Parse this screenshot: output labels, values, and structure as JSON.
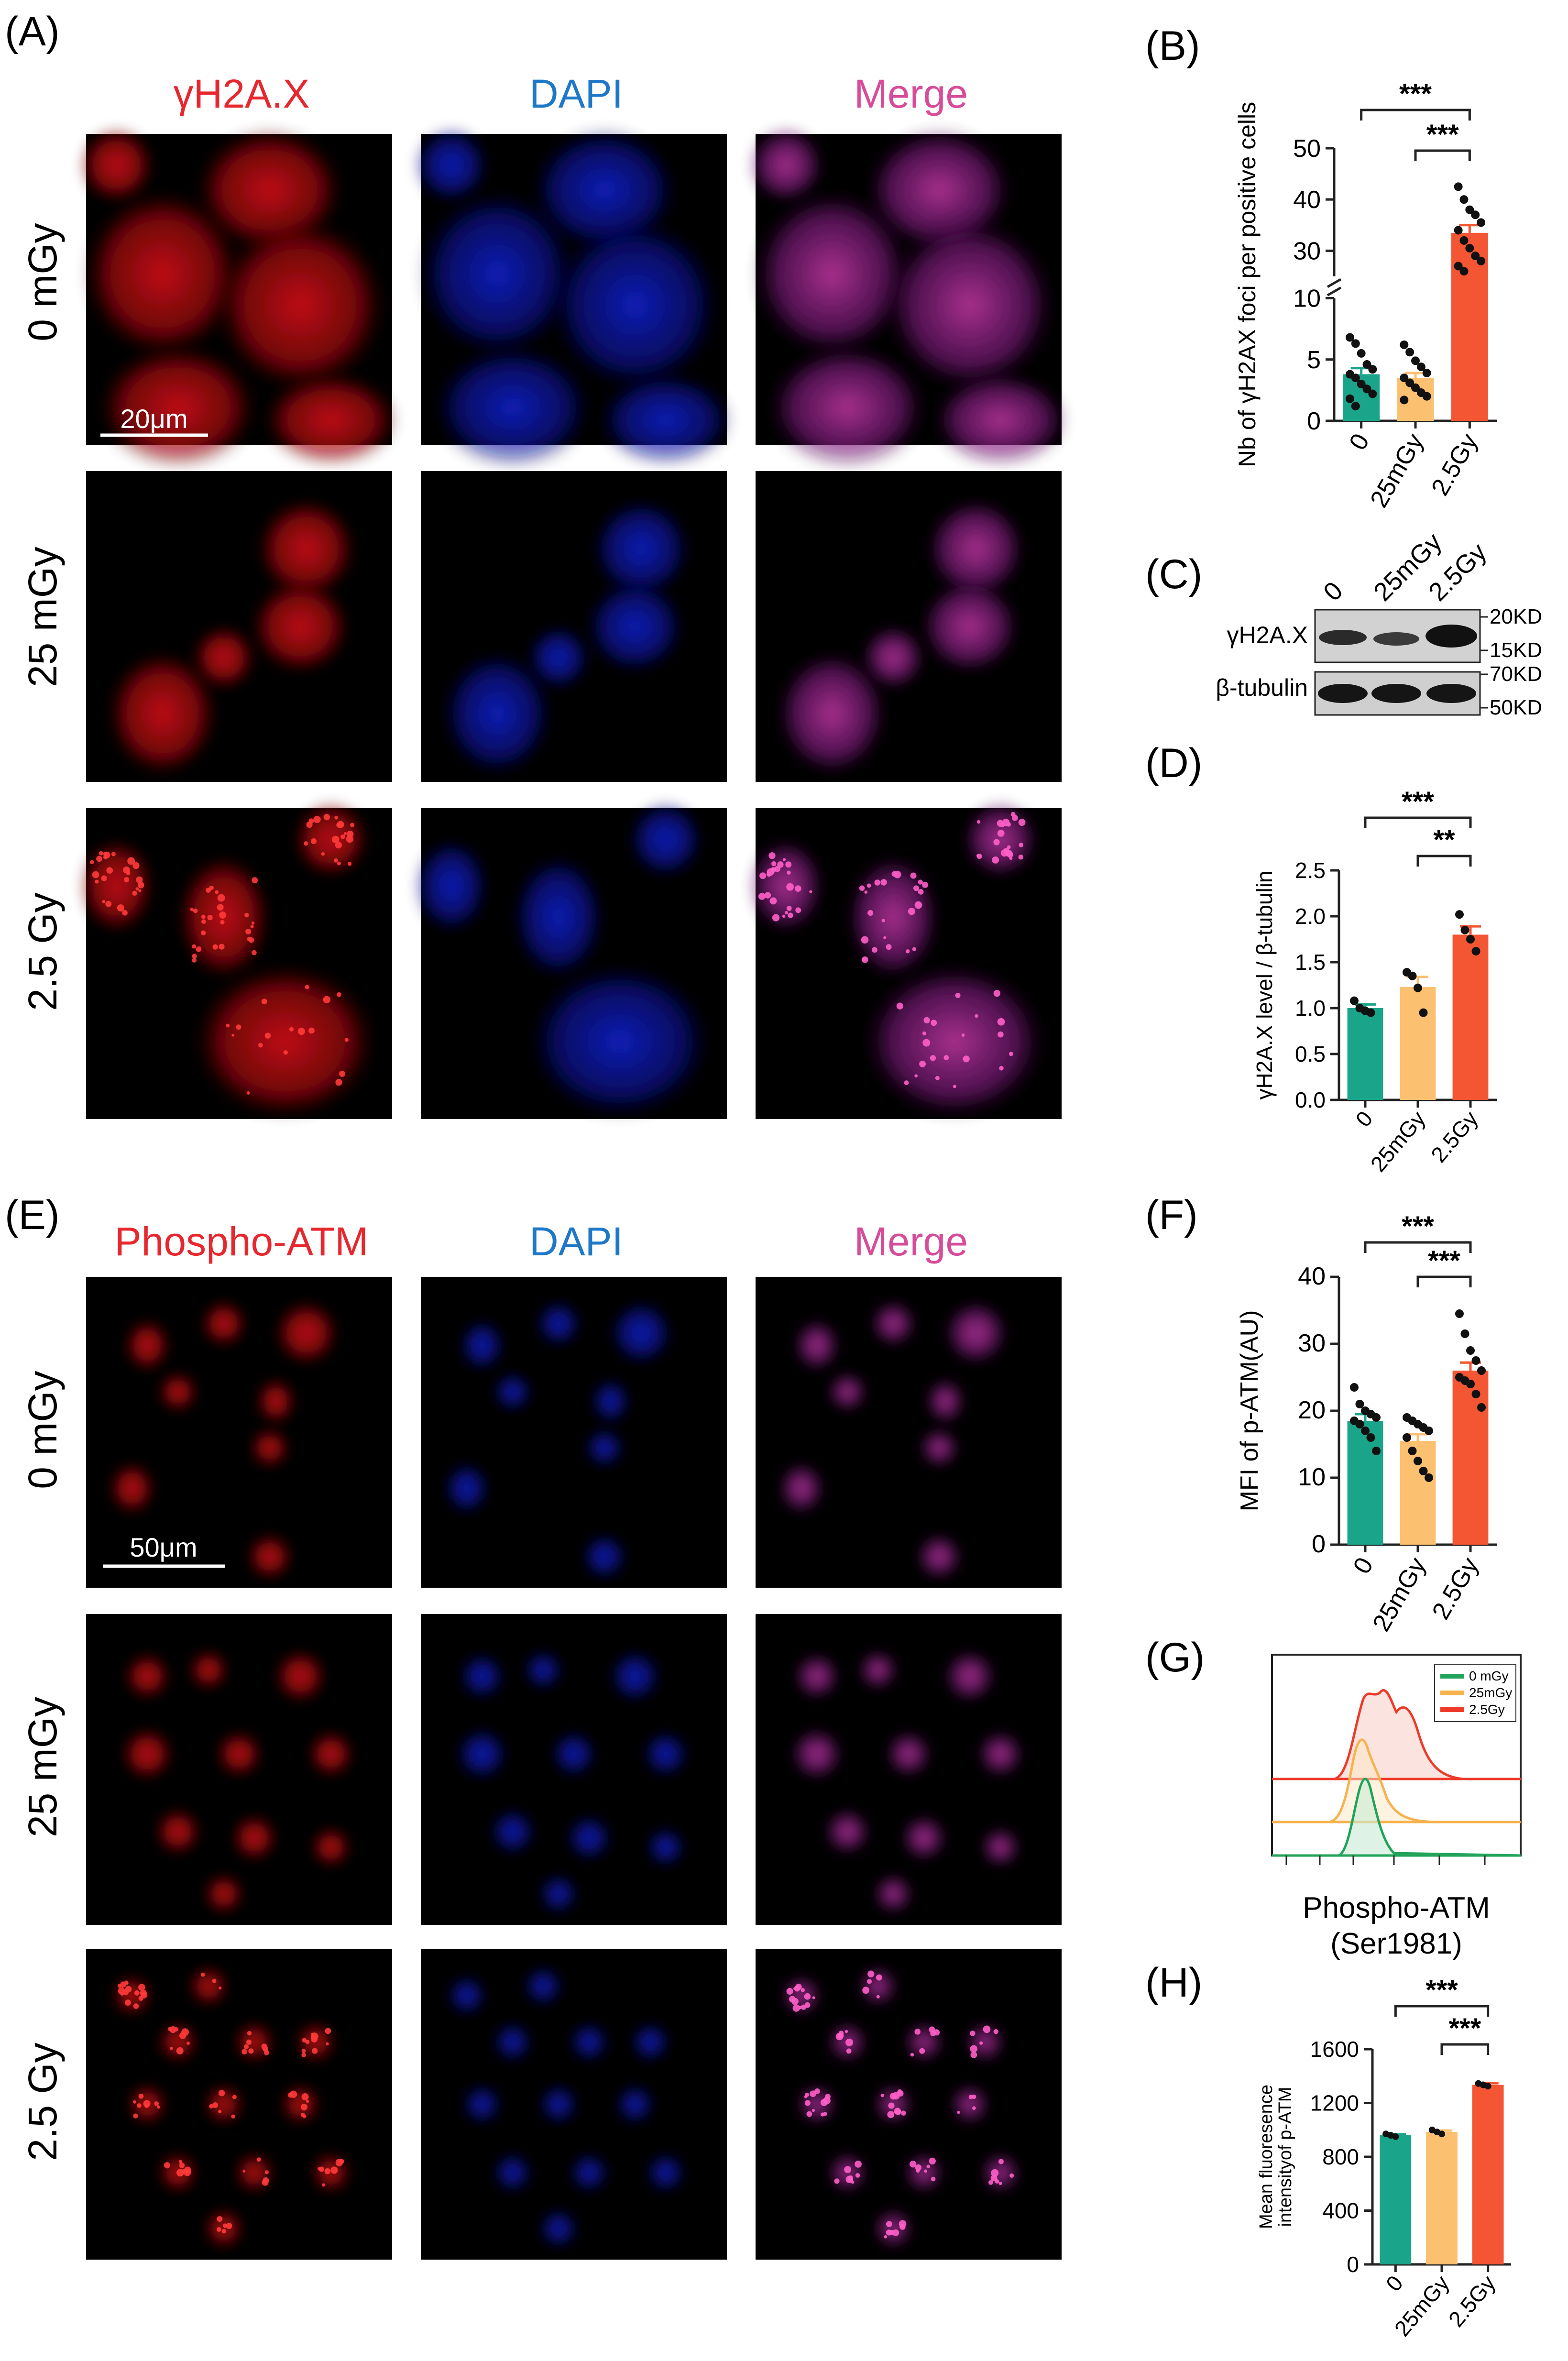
{
  "colors": {
    "control": "#1aa58a",
    "low_dose": "#fcc071",
    "high_dose": "#f45533",
    "red_label": "#e8262e",
    "blue_label": "#1e78c8",
    "pink_label": "#d64c9a",
    "flow_green": "#21a35a",
    "flow_orange": "#f6b24c",
    "flow_red": "#ef3a2a"
  },
  "panel_A": {
    "letter": "(A)",
    "columns": [
      "γH2A.X",
      "DAPI",
      "Merge"
    ],
    "rows": [
      "0 mGy",
      "25 mGy",
      "2.5 Gy"
    ],
    "scale_bar": "20μm"
  },
  "panel_E": {
    "letter": "(E)",
    "columns": [
      "Phospho-ATM",
      "DAPI",
      "Merge"
    ],
    "rows": [
      "0 mGy",
      "25 mGy",
      "2.5 Gy"
    ],
    "scale_bar": "50μm"
  },
  "panel_C": {
    "letter": "(C)",
    "lanes": [
      "0",
      "25mGy",
      "2.5Gy"
    ],
    "bands": [
      "γH2A.X",
      "β-tubulin"
    ],
    "markers": [
      "20KD",
      "15KD",
      "70KD",
      "50KD"
    ]
  },
  "panel_G": {
    "letter": "(G)",
    "legend": [
      "0 mGy",
      "25mGy",
      "2.5Gy"
    ],
    "xlabel_line1": "Phospho-ATM",
    "xlabel_line2": "(Ser1981)"
  },
  "chart_data": [
    {
      "id": "B",
      "letter": "(B)",
      "type": "bar",
      "categories": [
        "0",
        "25mGy",
        "2.5Gy"
      ],
      "values": [
        3.8,
        3.5,
        33.5
      ],
      "errors": [
        0.5,
        0.4,
        1.5
      ],
      "points": [
        [
          6.8,
          6.3,
          5.5,
          4.6,
          4.2,
          3.8,
          3.5,
          3.0,
          2.6,
          2.2,
          1.8,
          1.2
        ],
        [
          6.2,
          5.6,
          4.9,
          4.4,
          3.9,
          3.5,
          3.1,
          2.7,
          2.3,
          2.0,
          1.7
        ],
        [
          42.5,
          40,
          38,
          37,
          35.5,
          34,
          32,
          30.5,
          29,
          28,
          27,
          26
        ]
      ],
      "ylabel": "Nb of γH2AX foci per positive cells",
      "yticks_lower": [
        0,
        5,
        10
      ],
      "yticks_upper": [
        30,
        40,
        50
      ],
      "axis_break": [
        10,
        25
      ],
      "significance": [
        "***",
        "***"
      ]
    },
    {
      "id": "D",
      "letter": "(D)",
      "type": "bar",
      "categories": [
        "0",
        "25mGy",
        "2.5Gy"
      ],
      "values": [
        1.0,
        1.23,
        1.8
      ],
      "errors": [
        0.04,
        0.11,
        0.09
      ],
      "points": [
        [
          1.08,
          1.0,
          0.97,
          0.95
        ],
        [
          1.39,
          1.35,
          1.22,
          0.95
        ],
        [
          2.02,
          1.85,
          1.75,
          1.62
        ]
      ],
      "ylabel": "γH2A.X level / β-tubulin",
      "ylim": [
        0,
        2.5
      ],
      "yticks": [
        0.0,
        0.5,
        1.0,
        1.5,
        2.0,
        2.5
      ],
      "significance": [
        "***",
        "**"
      ]
    },
    {
      "id": "F",
      "letter": "(F)",
      "type": "bar",
      "categories": [
        "0",
        "25mGy",
        "2.5Gy"
      ],
      "values": [
        18.5,
        15.5,
        26
      ],
      "errors": [
        1.0,
        1.0,
        1.2
      ],
      "points": [
        [
          23.5,
          21,
          20,
          19.5,
          19,
          18.5,
          18,
          17,
          16,
          14
        ],
        [
          19,
          18.5,
          18,
          17.5,
          17,
          16,
          14,
          12.5,
          11,
          10
        ],
        [
          34.5,
          31.5,
          29,
          27.5,
          26,
          25,
          24.5,
          24,
          22.5,
          20.5
        ]
      ],
      "ylabel": "MFI of p-ATM(AU)",
      "ylim": [
        0,
        40
      ],
      "yticks": [
        0,
        10,
        20,
        30,
        40
      ],
      "significance": [
        "***",
        "***"
      ]
    },
    {
      "id": "H",
      "letter": "(H)",
      "type": "bar",
      "categories": [
        "0",
        "25mGy",
        "2.5Gy"
      ],
      "values": [
        960,
        985,
        1335
      ],
      "errors": [
        8,
        10,
        12
      ],
      "points": [
        [
          970,
          960,
          950
        ],
        [
          1000,
          985,
          970
        ],
        [
          1345,
          1335,
          1325
        ]
      ],
      "ylabel_line1": "Mean fluoresence",
      "ylabel_line2": "intensityof p-ATM",
      "ylim": [
        0,
        1600
      ],
      "yticks": [
        0,
        400,
        800,
        1200,
        1600
      ],
      "significance": [
        "***",
        "***"
      ]
    }
  ]
}
